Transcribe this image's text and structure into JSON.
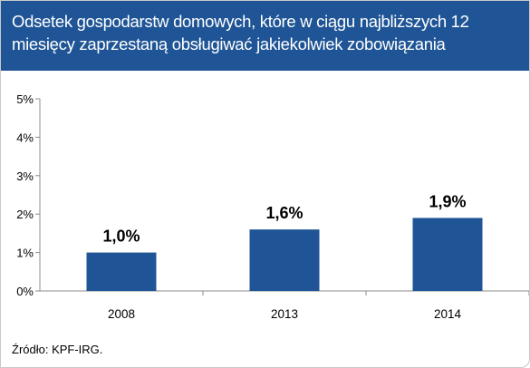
{
  "header": {
    "title": "Odsetek gospodarstw domowych, które w ciągu najbliższych 12 miesięcy zaprzestaną obsługiwać jakiekolwiek zobowiązania"
  },
  "source": "Źródło: KPF-IRG.",
  "colors": {
    "header_bg": "#1f5596",
    "bar": "#1f5596",
    "axis": "#8c8c8c"
  },
  "chart_data": {
    "type": "bar",
    "categories": [
      "2008",
      "2013",
      "2014"
    ],
    "values": [
      1.0,
      1.6,
      1.9
    ],
    "data_labels": [
      "1,0%",
      "1,6%",
      "1,9%"
    ],
    "ylim": [
      0,
      5
    ],
    "yticks": [
      0,
      1,
      2,
      3,
      4,
      5
    ],
    "ytick_labels": [
      "0%",
      "1%",
      "2%",
      "3%",
      "4%",
      "5%"
    ],
    "grid": false,
    "legend": "none"
  }
}
